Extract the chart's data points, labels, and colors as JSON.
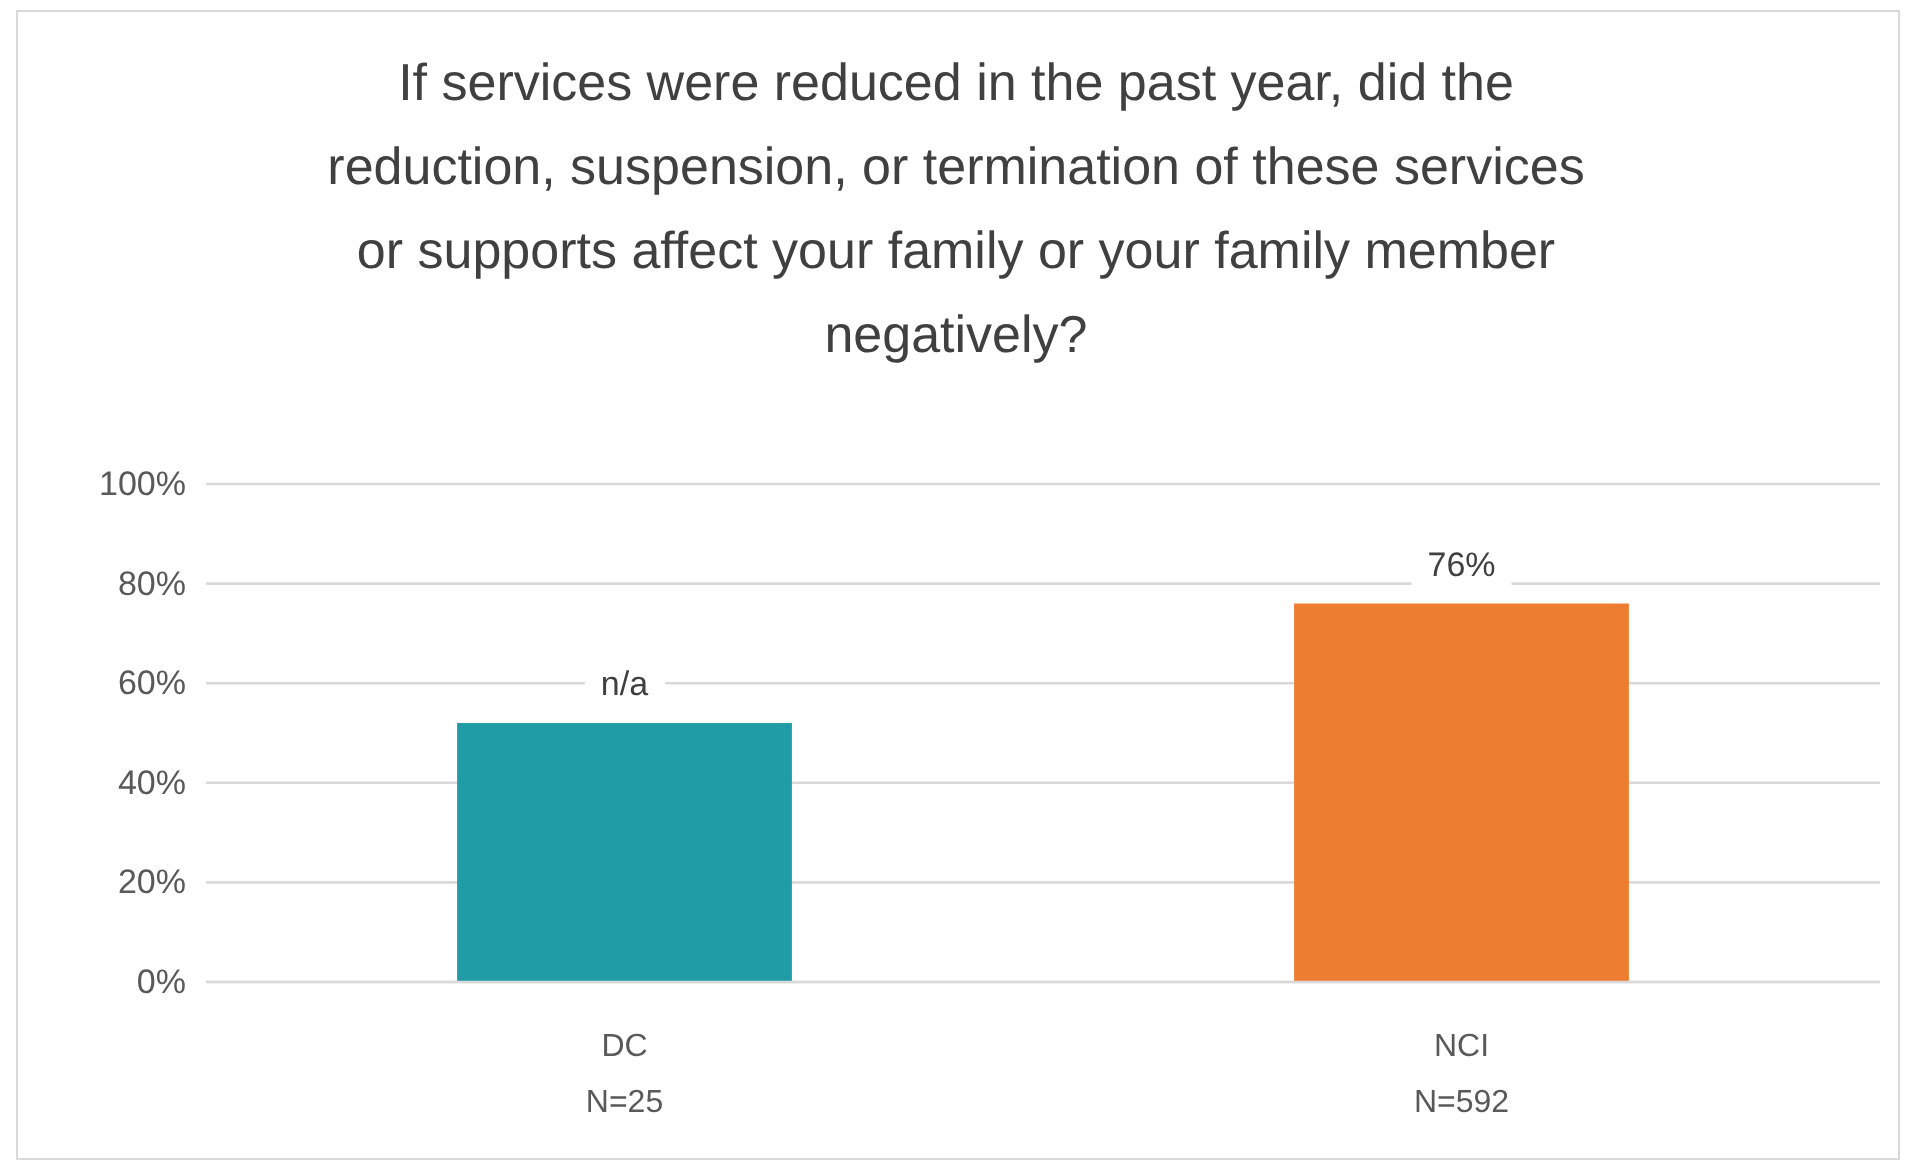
{
  "chart_data": {
    "type": "bar",
    "title": "If services were reduced in the past year, did the reduction, suspension, or termination of these services or supports affect your family or your family member negatively?",
    "categories": [
      "DC\nN=25",
      "NCI\nN=592"
    ],
    "values": [
      52,
      76
    ],
    "colors": [
      "#209ca7",
      "#ed7d31"
    ],
    "value_labels": [
      "n/a",
      "76%"
    ],
    "ylim": [
      0,
      100
    ],
    "yticks": [
      {
        "value": 0,
        "label": "0%"
      },
      {
        "value": 20,
        "label": "20%"
      },
      {
        "value": 40,
        "label": "40%"
      },
      {
        "value": 60,
        "label": "60%"
      },
      {
        "value": 80,
        "label": "80%"
      },
      {
        "value": 100,
        "label": "100%"
      }
    ],
    "grid": "y"
  }
}
